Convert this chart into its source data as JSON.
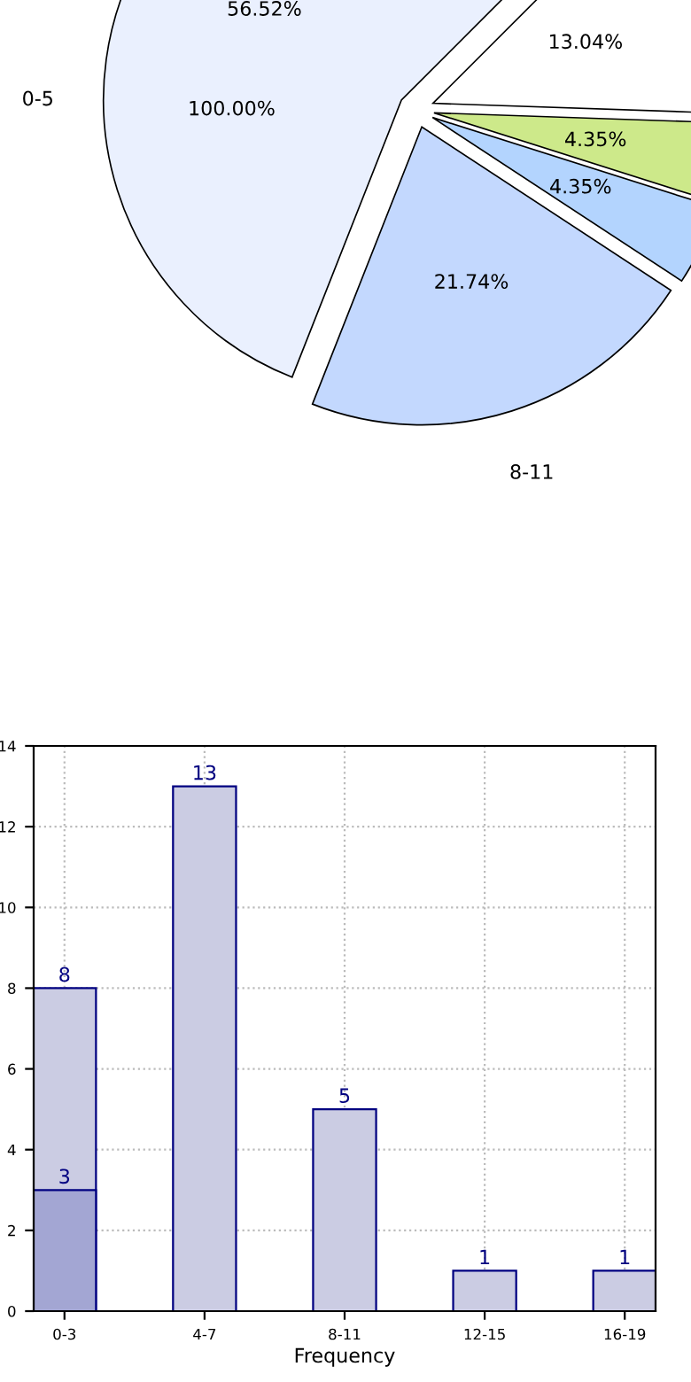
{
  "chart_data": [
    {
      "type": "pie",
      "categories": [
        "0-5",
        "8-11",
        null,
        null,
        null
      ],
      "values": [
        56.52,
        21.74,
        4.35,
        4.35,
        13.04
      ],
      "colors": [
        "#eaf0fe",
        "#c3d8fe",
        "#b3d4fe",
        "#cde98a",
        "#ffffff"
      ],
      "value_labels": [
        "56.52%",
        "21.74%",
        "4.35%",
        "4.35%",
        "13.04%"
      ],
      "annotations": [
        "100.00%"
      ]
    },
    {
      "type": "bar",
      "categories": [
        "0-3",
        "4-7",
        "8-11",
        "12-15",
        "16-19"
      ],
      "xlabel": "Frequency",
      "series": [
        {
          "color": "#cbcce3",
          "values": [
            8,
            13,
            5,
            1,
            1
          ]
        },
        {
          "color": "#a3a6d3",
          "values": [
            3,
            null,
            null,
            null,
            null
          ]
        }
      ],
      "ylim": [
        0,
        14
      ],
      "yticks": [
        0,
        2,
        4,
        6,
        8,
        10,
        12,
        14
      ],
      "grid": true,
      "data_labels": true,
      "legend": false
    }
  ]
}
